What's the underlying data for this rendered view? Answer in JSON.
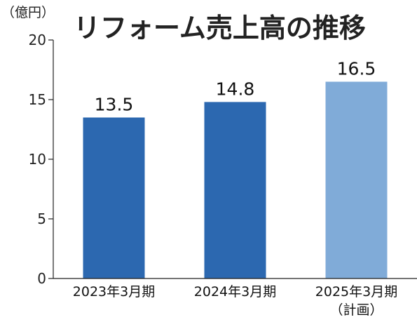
{
  "chart_data": {
    "type": "bar",
    "title": "リフォーム売上高の推移",
    "unit_label": "（億円）",
    "categories": [
      "2023年3月期",
      "2024年3月期",
      "2025年3月期"
    ],
    "category_notes": [
      "",
      "",
      "（計画）"
    ],
    "values": [
      13.5,
      14.8,
      16.5
    ],
    "value_labels": [
      "13.5",
      "14.8",
      "16.5"
    ],
    "bar_colors": [
      "#2c68b0",
      "#2c68b0",
      "#80abd8"
    ],
    "ylim": [
      0,
      20
    ],
    "yticks": [
      0,
      5,
      10,
      15,
      20
    ],
    "grid": false
  }
}
